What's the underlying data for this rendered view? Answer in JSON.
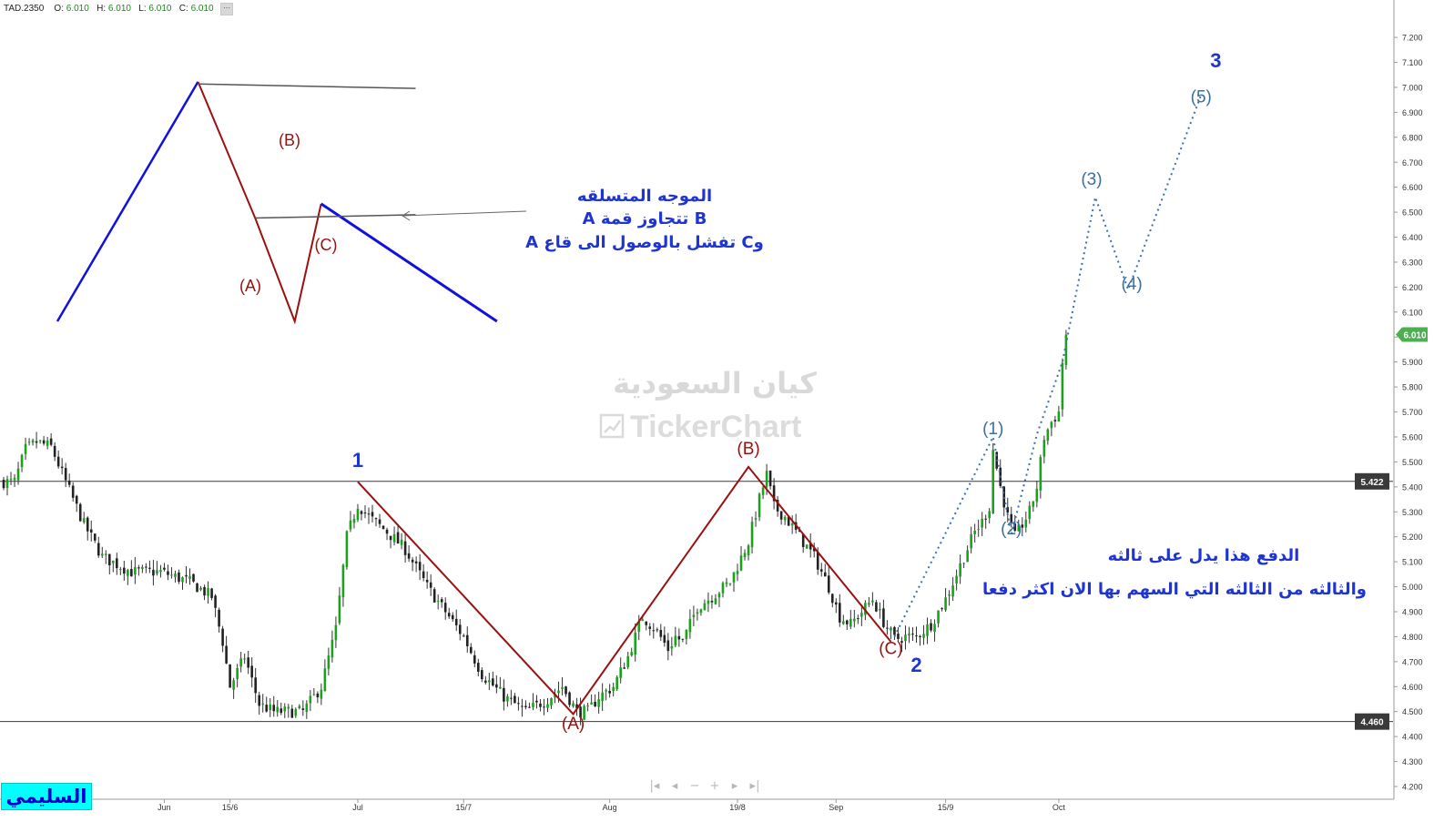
{
  "symbol": "TAD.2350",
  "ohlc": {
    "o_label": "O:",
    "o": "6.010",
    "h_label": "H:",
    "h": "6.010",
    "l_label": "L:",
    "l": "6.010",
    "c_label": "C:",
    "c": "6.010",
    "menu_icon": "grid-icon"
  },
  "watermark": {
    "arabic": "كيان السعودية",
    "brand": "TickerChart",
    "logo_icon": "chart-logo-icon"
  },
  "author_badge": "السليمي",
  "nav_controls": [
    "first-icon",
    "prev-icon",
    "zoom-out-icon",
    "zoom-in-icon",
    "next-icon",
    "last-icon"
  ],
  "annotations": {
    "diagram_title": "الموجه المتسلقه",
    "diagram_line2": "B تتجاوز قمة A",
    "diagram_line3": "وC تفشل بالوصول الى قاع A",
    "comment_line1": "الدفع هذا يدل على ثالثه",
    "comment_line2": "والثالثه من الثالثه التي السهم بها الان اكثر دفعا"
  },
  "chart_data": {
    "type": "candlestick",
    "y_axis": {
      "range": [
        4.15,
        7.22
      ],
      "ticks": [
        "4.200",
        "4.300",
        "4.400",
        "4.500",
        "4.600",
        "4.700",
        "4.800",
        "4.900",
        "5.000",
        "5.100",
        "5.200",
        "5.300",
        "5.400",
        "5.500",
        "5.600",
        "5.700",
        "5.800",
        "5.900",
        "6.000",
        "6.100",
        "6.200",
        "6.300",
        "6.400",
        "6.500",
        "6.600",
        "6.700",
        "6.800",
        "6.900",
        "7.000",
        "7.100",
        "7.200"
      ]
    },
    "x_axis": {
      "ticks": [
        {
          "label": "Jun",
          "bar": 44
        },
        {
          "label": "15/6",
          "bar": 62
        },
        {
          "label": "Jul",
          "bar": 97
        },
        {
          "label": "15/7",
          "bar": 126
        },
        {
          "label": "Aug",
          "bar": 166
        },
        {
          "label": "19/8",
          "bar": 201
        },
        {
          "label": "Sep",
          "bar": 228
        },
        {
          "label": "15/9",
          "bar": 258
        },
        {
          "label": "Oct",
          "bar": 289
        }
      ]
    },
    "bar_count": 292,
    "price_path": [
      [
        0,
        5.42
      ],
      [
        3,
        5.42
      ],
      [
        6,
        5.55
      ],
      [
        9,
        5.58
      ],
      [
        13,
        5.56
      ],
      [
        17,
        5.42
      ],
      [
        22,
        5.25
      ],
      [
        27,
        5.12
      ],
      [
        35,
        5.06
      ],
      [
        43,
        5.06
      ],
      [
        51,
        5.02
      ],
      [
        57,
        4.96
      ],
      [
        60,
        4.78
      ],
      [
        62,
        4.6
      ],
      [
        66,
        4.72
      ],
      [
        70,
        4.53
      ],
      [
        74,
        4.5
      ],
      [
        82,
        4.5
      ],
      [
        87,
        4.6
      ],
      [
        91,
        4.83
      ],
      [
        94,
        5.2
      ],
      [
        97,
        5.33
      ],
      [
        100,
        5.28
      ],
      [
        105,
        5.22
      ],
      [
        110,
        5.15
      ],
      [
        116,
        5.0
      ],
      [
        121,
        4.9
      ],
      [
        126,
        4.8
      ],
      [
        131,
        4.65
      ],
      [
        137,
        4.56
      ],
      [
        143,
        4.5
      ],
      [
        149,
        4.55
      ],
      [
        153,
        4.6
      ],
      [
        157,
        4.5
      ],
      [
        160,
        4.5
      ],
      [
        163,
        4.56
      ],
      [
        167,
        4.6
      ],
      [
        171,
        4.72
      ],
      [
        175,
        4.88
      ],
      [
        179,
        4.82
      ],
      [
        182,
        4.75
      ],
      [
        184,
        4.8
      ],
      [
        186,
        4.78
      ],
      [
        190,
        4.92
      ],
      [
        194,
        4.96
      ],
      [
        199,
        5.02
      ],
      [
        204,
        5.18
      ],
      [
        207,
        5.35
      ],
      [
        209,
        5.45
      ],
      [
        211,
        5.32
      ],
      [
        214,
        5.28
      ],
      [
        218,
        5.2
      ],
      [
        222,
        5.12
      ],
      [
        226,
        5.0
      ],
      [
        229,
        4.88
      ],
      [
        232,
        4.85
      ],
      [
        235,
        4.9
      ],
      [
        238,
        4.95
      ],
      [
        241,
        4.86
      ],
      [
        244,
        4.79
      ],
      [
        247,
        4.8
      ],
      [
        250,
        4.8
      ],
      [
        254,
        4.85
      ],
      [
        258,
        4.95
      ],
      [
        261,
        5.05
      ],
      [
        263,
        5.12
      ],
      [
        266,
        5.22
      ],
      [
        268,
        5.26
      ],
      [
        270,
        5.32
      ],
      [
        271,
        5.55
      ],
      [
        273,
        5.4
      ],
      [
        275,
        5.28
      ],
      [
        277,
        5.2
      ],
      [
        279,
        5.25
      ],
      [
        281,
        5.3
      ],
      [
        283,
        5.4
      ],
      [
        285,
        5.6
      ],
      [
        287,
        5.66
      ],
      [
        289,
        5.7
      ],
      [
        290,
        5.9
      ],
      [
        291,
        6.01
      ]
    ],
    "horizontal_levels": [
      {
        "value": 5.422,
        "label": "5.422"
      },
      {
        "value": 4.46,
        "label": "4.460"
      }
    ],
    "last_price": {
      "value": 6.01,
      "label": "6.010"
    },
    "wave_labels": [
      {
        "text": "1",
        "bar": 97,
        "price": 5.48,
        "kind": "major"
      },
      {
        "text": "2",
        "bar": 250,
        "price": 4.66,
        "kind": "major"
      },
      {
        "text": "3",
        "bar": 332,
        "price": 7.08,
        "kind": "major"
      },
      {
        "text": "(A)",
        "bar": 156,
        "price": 4.43,
        "kind": "corrective"
      },
      {
        "text": "(B)",
        "bar": 204,
        "price": 5.53,
        "kind": "corrective"
      },
      {
        "text": "(C)",
        "bar": 243,
        "price": 4.73,
        "kind": "corrective"
      },
      {
        "text": "(1)",
        "bar": 271,
        "price": 5.61,
        "kind": "impulse"
      },
      {
        "text": "(2)",
        "bar": 276,
        "price": 5.21,
        "kind": "impulse"
      },
      {
        "text": "(3)",
        "bar": 298,
        "price": 6.61,
        "kind": "impulse"
      },
      {
        "text": "(4)",
        "bar": 309,
        "price": 6.19,
        "kind": "impulse"
      },
      {
        "text": "(5)",
        "bar": 328,
        "price": 6.94,
        "kind": "impulse"
      }
    ],
    "wave_lines": {
      "abc": [
        [
          97,
          5.42
        ],
        [
          156,
          4.49
        ],
        [
          204,
          5.48
        ],
        [
          243,
          4.78
        ]
      ],
      "projection": [
        [
          244,
          4.8
        ],
        [
          271,
          5.6
        ],
        [
          276,
          5.21
        ],
        [
          283,
          5.61
        ],
        [
          290,
          5.9
        ],
        [
          299,
          6.56
        ],
        [
          308,
          6.19
        ],
        [
          328,
          6.97
        ]
      ]
    },
    "scheme": {
      "impulse_in": [
        [
          0,
          0
        ],
        [
          128,
          218
        ]
      ],
      "abc": [
        [
          128,
          218
        ],
        [
          180,
          94
        ],
        [
          216,
          0
        ],
        [
          240,
          107
        ]
      ],
      "impulse_out": [
        [
          240,
          107
        ],
        [
          400,
          0
        ]
      ],
      "upper_channel": [
        [
          128,
          216
        ],
        [
          326,
          212
        ]
      ],
      "lower_channel": [
        [
          180,
          94
        ],
        [
          326,
          97
        ]
      ],
      "labels": [
        {
          "text": "(A)"
        },
        {
          "text": "(B)"
        },
        {
          "text": "(C)"
        }
      ]
    },
    "colors": {
      "up": "#1aa31a",
      "down": "#222222",
      "wick": "#333333",
      "abc_line": "#9b1010",
      "impulse_line": "#1111dd",
      "projection": "#3a6fb0",
      "major_label": "#1f35d1",
      "corrective_label": "#9b1010",
      "impulse_label": "#3a6f9f",
      "last_price_badge": "#4caf50",
      "level_badge": "#3a3a3a"
    }
  }
}
